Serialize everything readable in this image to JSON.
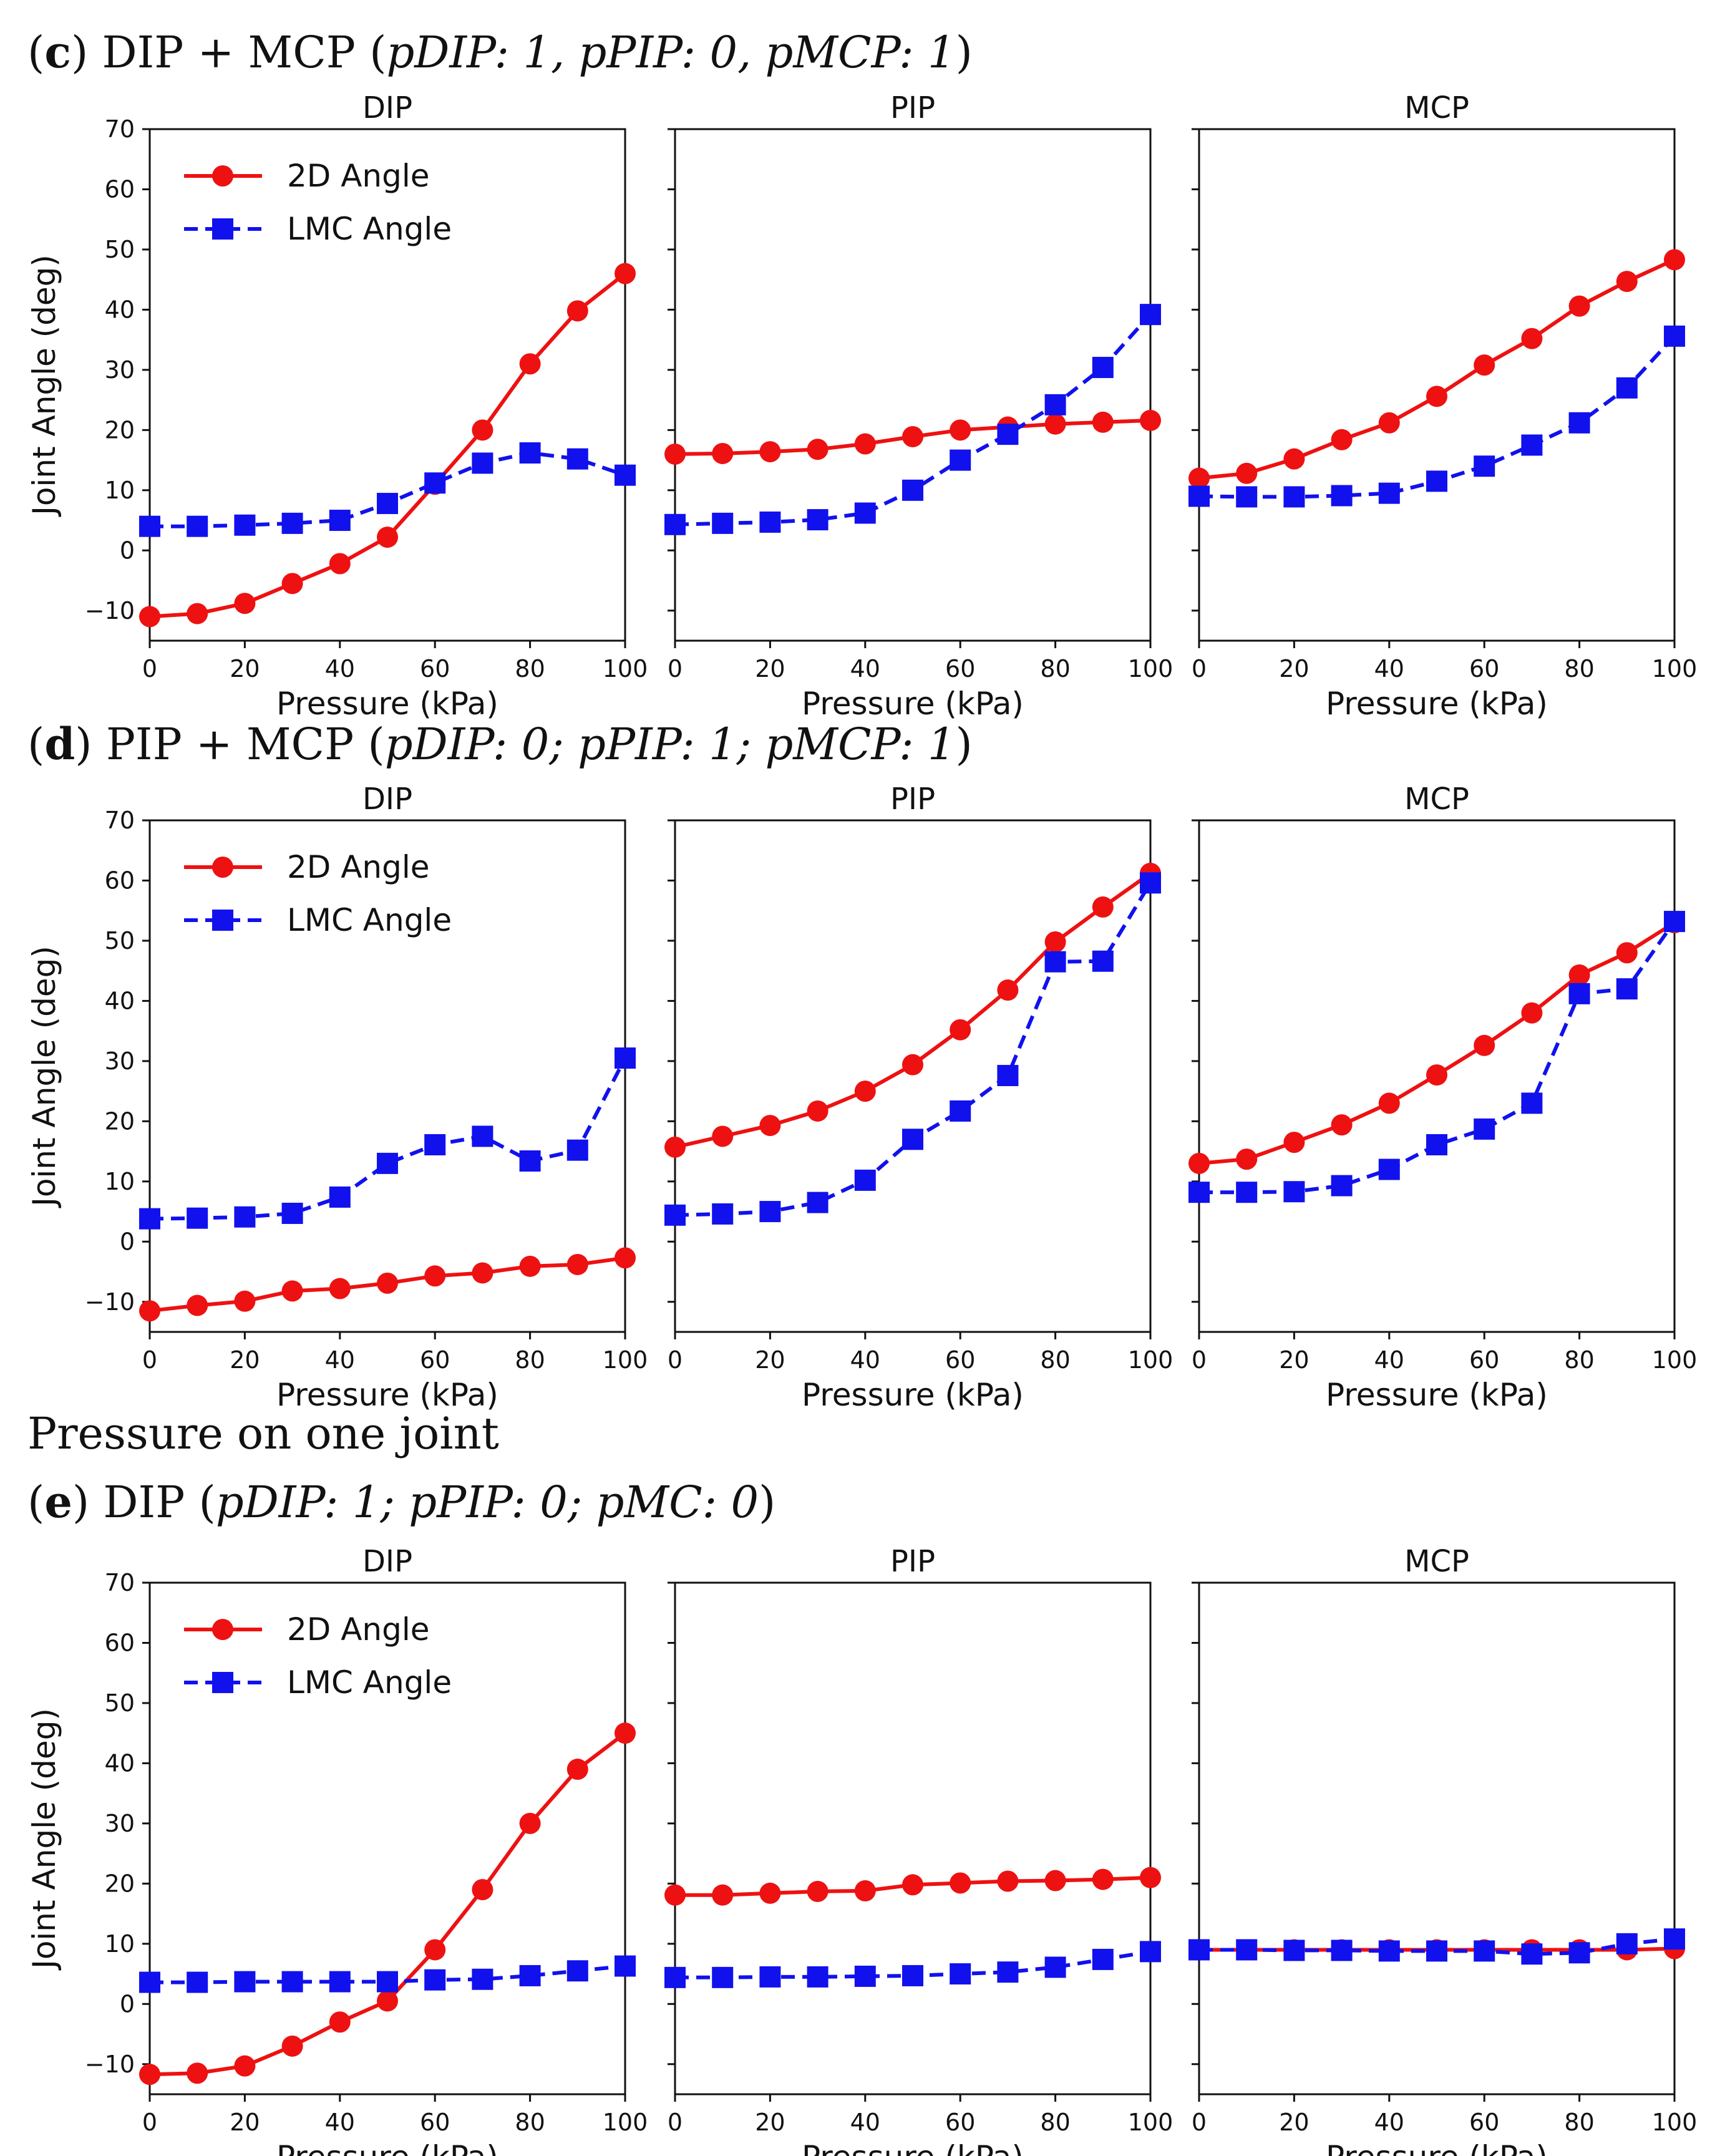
{
  "headings": {
    "c": {
      "label": "c",
      "text": "DIP + MCP",
      "params": "pDIP: 1,  pPIP: 0,  pMCP: 1"
    },
    "d": {
      "label": "d",
      "text": "PIP + MCP",
      "params": "pDIP: 0;  pPIP: 1;  pMCP: 1"
    },
    "section": "Pressure on one joint",
    "e": {
      "label": "e",
      "text": "DIP",
      "params": "pDIP: 1;  pPIP: 0;  pMC: 0"
    }
  },
  "legend": {
    "series1": "2D Angle",
    "series2": "LMC Angle"
  },
  "colors": {
    "angle2d": "#ee1111",
    "lmc": "#1111ee"
  },
  "chart_data": [
    {
      "type": "line",
      "group": "c",
      "title": "DIP",
      "xlabel": "Pressure (kPa)",
      "ylabel": "Joint Angle (deg)",
      "x": [
        0,
        10,
        20,
        30,
        40,
        50,
        60,
        70,
        80,
        90,
        100
      ],
      "xlim": [
        0,
        100
      ],
      "ylim": [
        -15,
        70
      ],
      "xticks": [
        0,
        20,
        40,
        60,
        80,
        100
      ],
      "yticks": [
        -10,
        0,
        10,
        20,
        30,
        40,
        50,
        60,
        70
      ],
      "legend": "top-left",
      "series": [
        {
          "name": "2D Angle",
          "values": [
            -11,
            -10.5,
            -8.8,
            -5.5,
            -2.2,
            2.2,
            11,
            20,
            31,
            39.8,
            46
          ]
        },
        {
          "name": "LMC Angle",
          "values": [
            4,
            4,
            4.2,
            4.5,
            5,
            7.8,
            11.2,
            14.5,
            16.2,
            15.2,
            12.5
          ]
        }
      ]
    },
    {
      "type": "line",
      "group": "c",
      "title": "PIP",
      "xlabel": "Pressure (kPa)",
      "ylabel": "",
      "x": [
        0,
        10,
        20,
        30,
        40,
        50,
        60,
        70,
        80,
        90,
        100
      ],
      "xlim": [
        0,
        100
      ],
      "ylim": [
        -15,
        70
      ],
      "xticks": [
        0,
        20,
        40,
        60,
        80,
        100
      ],
      "yticks": [],
      "series": [
        {
          "name": "2D Angle",
          "values": [
            16,
            16.1,
            16.4,
            16.8,
            17.7,
            18.9,
            20,
            20.5,
            21,
            21.3,
            21.6
          ]
        },
        {
          "name": "LMC Angle",
          "values": [
            4.3,
            4.5,
            4.7,
            5.1,
            6.2,
            10,
            15,
            19.3,
            24.2,
            30.4,
            39.2
          ]
        }
      ]
    },
    {
      "type": "line",
      "group": "c",
      "title": "MCP",
      "xlabel": "Pressure (kPa)",
      "ylabel": "",
      "x": [
        0,
        10,
        20,
        30,
        40,
        50,
        60,
        70,
        80,
        90,
        100
      ],
      "xlim": [
        0,
        100
      ],
      "ylim": [
        -15,
        70
      ],
      "xticks": [
        0,
        20,
        40,
        60,
        80,
        100
      ],
      "yticks": [],
      "series": [
        {
          "name": "2D Angle",
          "values": [
            12,
            12.8,
            15.2,
            18.4,
            21.2,
            25.6,
            30.8,
            35.2,
            40.6,
            44.7,
            48.3
          ]
        },
        {
          "name": "LMC Angle",
          "values": [
            9,
            8.9,
            8.9,
            9.1,
            9.5,
            11.5,
            14,
            17.5,
            21.2,
            27,
            35.6
          ]
        }
      ]
    },
    {
      "type": "line",
      "group": "d",
      "title": "DIP",
      "xlabel": "Pressure (kPa)",
      "ylabel": "Joint Angle (deg)",
      "x": [
        0,
        10,
        20,
        30,
        40,
        50,
        60,
        70,
        80,
        90,
        100
      ],
      "xlim": [
        0,
        100
      ],
      "ylim": [
        -15,
        70
      ],
      "xticks": [
        0,
        20,
        40,
        60,
        80,
        100
      ],
      "yticks": [
        -10,
        0,
        10,
        20,
        30,
        40,
        50,
        60,
        70
      ],
      "legend": "top-left",
      "series": [
        {
          "name": "2D Angle",
          "values": [
            -11.5,
            -10.6,
            -9.9,
            -8.2,
            -7.8,
            -6.9,
            -5.7,
            -5.2,
            -4.1,
            -3.8,
            -2.7
          ]
        },
        {
          "name": "LMC Angle",
          "values": [
            3.8,
            3.9,
            4.1,
            4.7,
            7.4,
            13,
            16.1,
            17.5,
            13.4,
            15.2,
            30.5
          ]
        }
      ]
    },
    {
      "type": "line",
      "group": "d",
      "title": "PIP",
      "xlabel": "Pressure (kPa)",
      "ylabel": "",
      "x": [
        0,
        10,
        20,
        30,
        40,
        50,
        60,
        70,
        80,
        90,
        100
      ],
      "xlim": [
        0,
        100
      ],
      "ylim": [
        -15,
        70
      ],
      "xticks": [
        0,
        20,
        40,
        60,
        80,
        100
      ],
      "yticks": [],
      "series": [
        {
          "name": "2D Angle",
          "values": [
            15.7,
            17.5,
            19.3,
            21.7,
            25,
            29.4,
            35.2,
            41.8,
            49.8,
            55.6,
            61.2
          ]
        },
        {
          "name": "LMC Angle",
          "values": [
            4.4,
            4.6,
            5,
            6.5,
            10.2,
            17,
            21.7,
            27.6,
            46.5,
            46.6,
            59.6
          ]
        }
      ]
    },
    {
      "type": "line",
      "group": "d",
      "title": "MCP",
      "xlabel": "Pressure (kPa)",
      "ylabel": "",
      "x": [
        0,
        10,
        20,
        30,
        40,
        50,
        60,
        70,
        80,
        90,
        100
      ],
      "xlim": [
        0,
        100
      ],
      "ylim": [
        -15,
        70
      ],
      "xticks": [
        0,
        20,
        40,
        60,
        80,
        100
      ],
      "yticks": [],
      "series": [
        {
          "name": "2D Angle",
          "values": [
            13,
            13.7,
            16.5,
            19.4,
            23,
            27.7,
            32.6,
            38,
            44.3,
            48,
            53
          ]
        },
        {
          "name": "LMC Angle",
          "values": [
            8.2,
            8.2,
            8.3,
            9.3,
            12,
            16.1,
            18.7,
            23,
            41.2,
            42,
            53.2
          ]
        }
      ]
    },
    {
      "type": "line",
      "group": "e",
      "title": "DIP",
      "xlabel": "Pressure (kPa)",
      "ylabel": "Joint Angle (deg)",
      "x": [
        0,
        10,
        20,
        30,
        40,
        50,
        60,
        70,
        80,
        90,
        100
      ],
      "xlim": [
        0,
        100
      ],
      "ylim": [
        -15,
        70
      ],
      "xticks": [
        0,
        20,
        40,
        60,
        80,
        100
      ],
      "yticks": [
        -10,
        0,
        10,
        20,
        30,
        40,
        50,
        60,
        70
      ],
      "legend": "top-left",
      "series": [
        {
          "name": "2D Angle",
          "values": [
            -11.7,
            -11.5,
            -10.3,
            -7,
            -3,
            0.5,
            9,
            19,
            30,
            39,
            45
          ]
        },
        {
          "name": "LMC Angle",
          "values": [
            3.6,
            3.6,
            3.7,
            3.7,
            3.7,
            3.7,
            4,
            4.1,
            4.7,
            5.5,
            6.3
          ]
        }
      ]
    },
    {
      "type": "line",
      "group": "e",
      "title": "PIP",
      "xlabel": "Pressure (kPa)",
      "ylabel": "",
      "x": [
        0,
        10,
        20,
        30,
        40,
        50,
        60,
        70,
        80,
        90,
        100
      ],
      "xlim": [
        0,
        100
      ],
      "ylim": [
        -15,
        70
      ],
      "xticks": [
        0,
        20,
        40,
        60,
        80,
        100
      ],
      "yticks": [],
      "series": [
        {
          "name": "2D Angle",
          "values": [
            18.1,
            18.1,
            18.4,
            18.7,
            18.8,
            19.8,
            20.1,
            20.4,
            20.5,
            20.7,
            21
          ]
        },
        {
          "name": "LMC Angle",
          "values": [
            4.4,
            4.4,
            4.5,
            4.5,
            4.6,
            4.7,
            5,
            5.3,
            6.1,
            7.4,
            8.7
          ]
        }
      ]
    },
    {
      "type": "line",
      "group": "e",
      "title": "MCP",
      "xlabel": "Pressure (kPa)",
      "ylabel": "",
      "x": [
        0,
        10,
        20,
        30,
        40,
        50,
        60,
        70,
        80,
        90,
        100
      ],
      "xlim": [
        0,
        100
      ],
      "ylim": [
        -15,
        70
      ],
      "xticks": [
        0,
        20,
        40,
        60,
        80,
        100
      ],
      "yticks": [],
      "series": [
        {
          "name": "2D Angle",
          "values": [
            9,
            9,
            9,
            9,
            9,
            9,
            9,
            9,
            9,
            9,
            9.2
          ]
        },
        {
          "name": "LMC Angle",
          "values": [
            9,
            9,
            8.9,
            8.9,
            8.8,
            8.8,
            8.8,
            8.3,
            8.5,
            10,
            10.8
          ]
        }
      ]
    }
  ]
}
